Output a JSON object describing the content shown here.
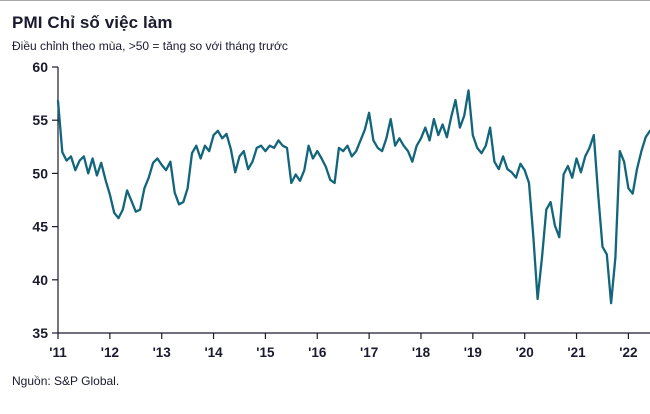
{
  "header": {
    "title": "PMI Chỉ số việc làm",
    "subtitle": "Điều chỉnh theo mùa, >50 = tăng so với tháng trước"
  },
  "footer": {
    "source": "Nguồn: S&P Global."
  },
  "chart_data": {
    "type": "line",
    "title": "PMI Chỉ số việc làm",
    "subtitle": "Điều chỉnh theo mùa, >50 = tăng so với tháng trước",
    "source": "Nguồn: S&P Global.",
    "frequency": "monthly",
    "x_start": "2011-01",
    "x_end": "2022-06",
    "ylim": [
      35,
      60
    ],
    "y_ticks": [
      35,
      40,
      45,
      50,
      55,
      60
    ],
    "x_tick_labels": [
      "'11",
      "'12",
      "'13",
      "'14",
      "'15",
      "'16",
      "'17",
      "'18",
      "'19",
      "'20",
      "'21",
      "'22"
    ],
    "x_tick_indices": [
      0,
      12,
      24,
      36,
      48,
      60,
      72,
      84,
      96,
      108,
      120,
      132
    ],
    "grid": false,
    "legend": "none",
    "line_color": "#12657a",
    "axis_color": "#1a1a2e",
    "values": [
      56.8,
      52.0,
      51.2,
      51.6,
      50.3,
      51.2,
      51.6,
      50.0,
      51.4,
      49.8,
      51.0,
      49.4,
      48.0,
      46.3,
      45.8,
      46.6,
      48.4,
      47.4,
      46.4,
      46.6,
      48.6,
      49.6,
      51.0,
      51.4,
      50.8,
      50.3,
      51.1,
      48.2,
      47.1,
      47.3,
      48.6,
      51.9,
      52.6,
      51.4,
      52.6,
      52.1,
      53.6,
      54.0,
      53.3,
      53.7,
      52.3,
      50.1,
      51.6,
      52.1,
      50.4,
      51.1,
      52.4,
      52.6,
      52.1,
      52.6,
      52.4,
      53.1,
      52.6,
      52.4,
      49.1,
      49.9,
      49.3,
      50.3,
      52.6,
      51.4,
      52.1,
      51.4,
      50.6,
      49.4,
      49.1,
      52.4,
      52.1,
      52.6,
      51.6,
      52.1,
      53.1,
      54.1,
      55.7,
      53.1,
      52.4,
      52.1,
      53.3,
      55.1,
      52.6,
      53.3,
      52.6,
      52.1,
      51.1,
      52.6,
      53.3,
      54.3,
      53.1,
      55.1,
      53.6,
      54.6,
      53.4,
      55.3,
      56.9,
      54.3,
      55.4,
      57.8,
      53.6,
      52.4,
      51.9,
      52.6,
      54.3,
      51.1,
      50.4,
      51.6,
      50.4,
      50.1,
      49.6,
      50.9,
      50.3,
      49.1,
      44.1,
      38.2,
      42.1,
      46.6,
      47.3,
      45.1,
      44.0,
      49.9,
      50.7,
      49.6,
      51.4,
      50.1,
      51.6,
      52.4,
      53.6,
      48.1,
      43.1,
      42.4,
      37.8,
      42.1,
      52.1,
      51.1,
      48.6,
      48.1,
      50.4,
      52.1,
      53.4,
      54.0
    ]
  }
}
